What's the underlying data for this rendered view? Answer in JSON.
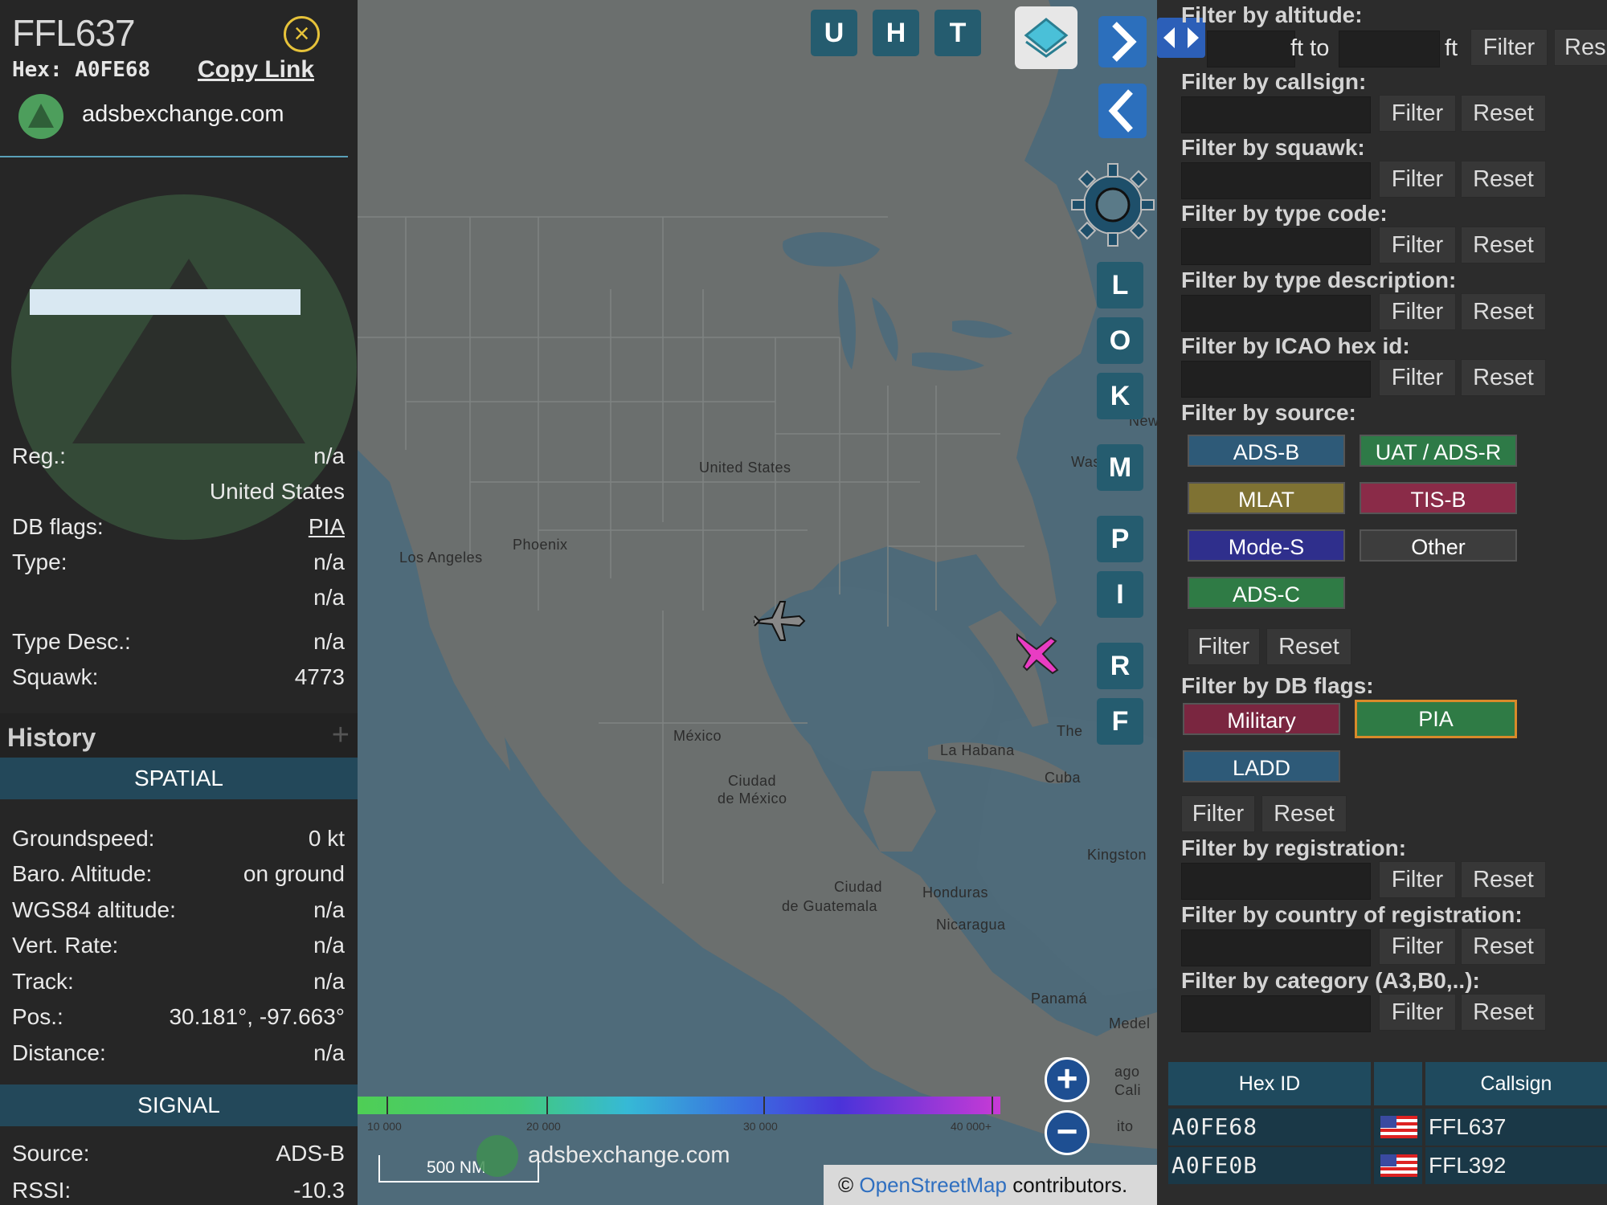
{
  "info": {
    "callsign": "FFL637",
    "hex_label": "Hex:",
    "hex": "A0FE68",
    "copy_link": "Copy Link",
    "site": "adsbexchange.com",
    "close_icon": "close-icon",
    "rows": [
      {
        "key": "Reg.:",
        "value": "n/a"
      },
      {
        "key": "",
        "value": "United States"
      },
      {
        "key": "DB flags:",
        "value": "PIA"
      },
      {
        "key": "Type:",
        "value": "n/a"
      },
      {
        "key": "",
        "value": "n/a"
      },
      {
        "key": "Type Desc.:",
        "value": "n/a"
      },
      {
        "key": "Squawk:",
        "value": "4773"
      }
    ],
    "history_title": "History",
    "history_plus": "+",
    "spatial_title": "SPATIAL",
    "spatial_rows": [
      {
        "key": "Groundspeed:",
        "value": "0 kt"
      },
      {
        "key": "Baro. Altitude:",
        "value": "on ground"
      },
      {
        "key": "WGS84 altitude:",
        "value": "n/a"
      },
      {
        "key": "Vert. Rate:",
        "value": "n/a"
      },
      {
        "key": "Track:",
        "value": "n/a"
      },
      {
        "key": "Pos.:",
        "value": "30.181°, -97.663°"
      },
      {
        "key": "Distance:",
        "value": "n/a"
      }
    ],
    "signal_title": "SIGNAL",
    "signal_rows": [
      {
        "key": "Source:",
        "value": "ADS-B"
      },
      {
        "key": "RSSI:",
        "value": "-10.3"
      }
    ]
  },
  "map": {
    "top_buttons": [
      "U",
      "H",
      "T"
    ],
    "side_buttons": [
      "L",
      "O",
      "K",
      "M",
      "P",
      "I",
      "R",
      "F"
    ],
    "labels": {
      "us": "United States",
      "phoenix": "Phoenix",
      "la": "Los Angeles",
      "mexico": "México",
      "cdmx1": "Ciudad",
      "cdmx2": "de México",
      "habana": "La Habana",
      "cuba": "Cuba",
      "kingston": "Kingston",
      "guate1": "Ciudad",
      "guate2": "de Guatemala",
      "honduras": "Honduras",
      "nicaragua": "Nicaragua",
      "panama": "Panamá",
      "medel": "Medel",
      "the": "The",
      "was": "Was",
      "new": "New",
      "ago": "ago",
      "cali": "Cali",
      "ito": "ito"
    },
    "altitude_ticks": [
      "10 000",
      "20 000",
      "30 000",
      "40 000+"
    ],
    "scale": "500 NM",
    "site": "adsbexchange.com",
    "credit_prefix": "©",
    "credit_link": "OpenStreetMap",
    "credit_suffix": "contributors.",
    "zoom_in": "+",
    "zoom_out": "−",
    "nav_next_icon": "chevron-right-icon",
    "nav_prev_icon": "chevron-left-icon",
    "layers_icon": "layers-icon",
    "settings_icon": "gear-icon",
    "expand_icon": "arrows-horizontal-icon"
  },
  "filters": {
    "altitude": {
      "label": "Filter by altitude:",
      "ft_to": "ft to",
      "ft": "ft",
      "filter": "Filter",
      "reset": "Res"
    },
    "sections": [
      {
        "label": "Filter by callsign:"
      },
      {
        "label": "Filter by squawk:"
      },
      {
        "label": "Filter by type code:"
      },
      {
        "label": "Filter by type description:"
      },
      {
        "label": "Filter by ICAO hex id:"
      }
    ],
    "filter_btn": "Filter",
    "reset_btn": "Reset",
    "source_label": "Filter by source:",
    "sources": [
      {
        "label": "ADS-B",
        "color": "#2e5a78"
      },
      {
        "label": "UAT / ADS-R",
        "color": "#2e7a47"
      },
      {
        "label": "MLAT",
        "color": "#7f7233"
      },
      {
        "label": "TIS-B",
        "color": "#8a2b48"
      },
      {
        "label": "Mode-S",
        "color": "#2f2f8c"
      },
      {
        "label": "Other",
        "color": "#3d3d3d"
      },
      {
        "label": "ADS-C",
        "color": "#2f7b45"
      }
    ],
    "dbflags_label": "Filter by DB flags:",
    "dbflags": [
      {
        "label": "Military",
        "color": "#7a2640"
      },
      {
        "label": "PIA",
        "color": "#2f7b45",
        "border": "#d98a2a"
      },
      {
        "label": "LADD",
        "color": "#2e5a78"
      }
    ],
    "sections2": [
      {
        "label": "Filter by registration:"
      },
      {
        "label": "Filter by country of registration:"
      },
      {
        "label": "Filter by category (A3,B0,..):"
      }
    ],
    "table": {
      "headers": [
        "Hex ID",
        "",
        "Callsign"
      ],
      "rows": [
        {
          "hex": "A0FE68",
          "callsign": "FFL637"
        },
        {
          "hex": "A0FE0B",
          "callsign": "FFL392"
        }
      ]
    }
  }
}
